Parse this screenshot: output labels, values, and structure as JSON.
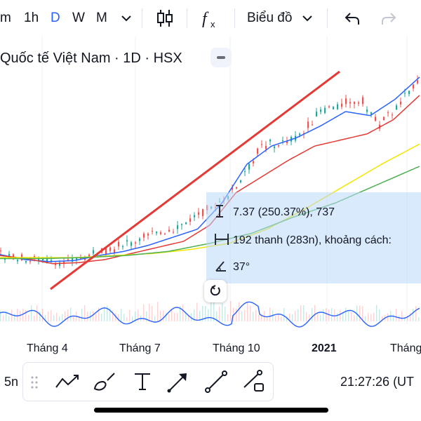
{
  "toolbar": {
    "intervals": [
      "m",
      "1h",
      "D",
      "W",
      "M"
    ],
    "active_interval": "D",
    "chart_type_label": "Biểu đồ"
  },
  "symbol": {
    "title": "Quốc tế Việt Nam · 1D · HSX"
  },
  "measure": {
    "price_change": "7.37 (250.37%), 737",
    "bars": "192 thanh (283n), khoảng cách:",
    "angle": "37°"
  },
  "x_axis": {
    "labels": [
      "Tháng 4",
      "Tháng 7",
      "Tháng 10",
      "2021",
      "Tháng"
    ]
  },
  "bottom": {
    "timeframe": "5n",
    "clock": "21:27:26 (UT"
  },
  "colors": {
    "accent": "#2962ff",
    "trendline": "#e53935",
    "ma_fast": "#2962ff",
    "ma_red": "#e53935",
    "ma_yellow": "#f2e600",
    "ma_green": "#4caf50",
    "candle_up": "#26a69a",
    "candle_down": "#ef5350",
    "measure_bg": "#bbd9fb"
  },
  "chart_data": {
    "type": "line",
    "title": "",
    "xlabel": "",
    "ylabel": "",
    "series": [
      {
        "values": [
          2.9,
          2.8,
          2.7,
          2.6,
          2.75,
          3.1,
          3.4,
          3.7,
          4.1,
          4.4,
          4.9,
          5.5,
          6.6,
          8.3,
          8.4,
          8.8,
          10.1,
          10.3,
          10.6,
          9.3,
          10.4,
          11.6
        ]
      },
      {
        "values": [
          2.95,
          2.7,
          2.6,
          2.65,
          2.9,
          3.1,
          3.4,
          3.8,
          4.2,
          5.5,
          7.4,
          8.3,
          8.7,
          9.3,
          10.0,
          9.8,
          10.6,
          11.7
        ]
      },
      {
        "values": [
          2.9,
          2.75,
          2.5,
          2.55,
          2.7,
          3.0,
          3.3,
          3.6,
          4.4,
          6.0,
          6.8,
          7.6,
          8.3,
          8.6,
          8.9,
          9.6,
          10.8
        ]
      },
      {
        "values": [
          2.8,
          2.8,
          2.8,
          2.9,
          3.0,
          3.2,
          3.5,
          4.2,
          5.2,
          6.3,
          7.4,
          8.4
        ]
      },
      {
        "values": [
          2.75,
          2.75,
          2.8,
          2.9,
          3.1,
          3.5,
          4.0,
          4.8,
          5.5,
          6.4,
          7.3
        ]
      }
    ]
  }
}
